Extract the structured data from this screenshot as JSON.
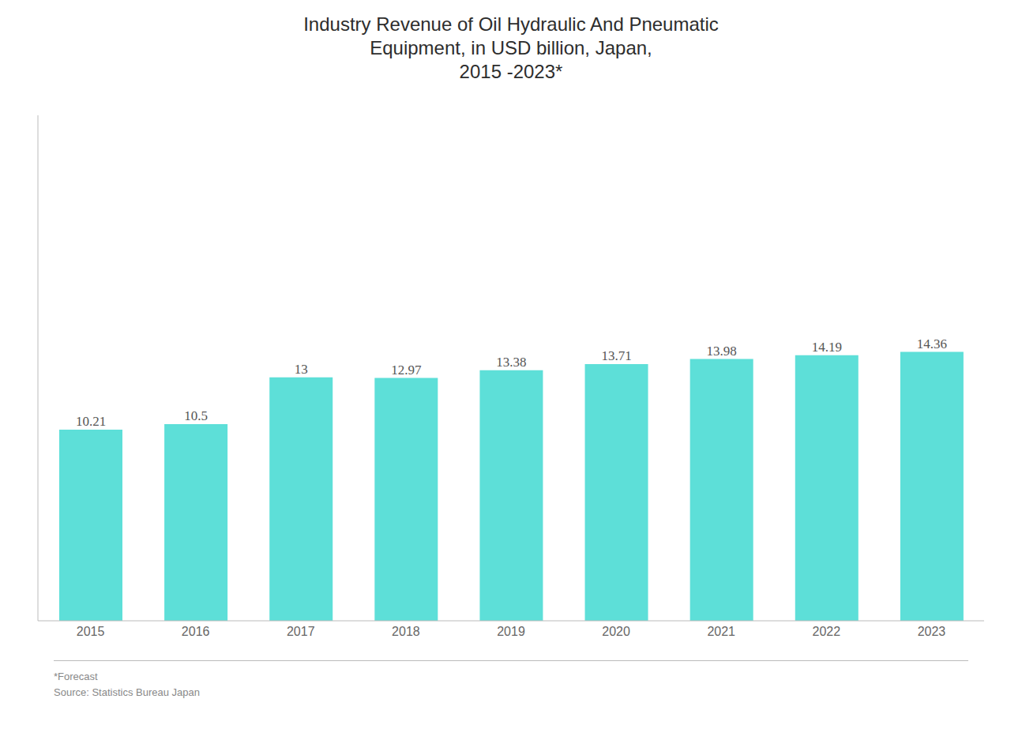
{
  "chart_data": {
    "type": "bar",
    "title": "Industry Revenue of Oil Hydraulic And Pneumatic\nEquipment, in USD billion, Japan,\n2015 -2023*",
    "categories": [
      "2015",
      "2016",
      "2017",
      "2018",
      "2019",
      "2020",
      "2021",
      "2022",
      "2023"
    ],
    "values": [
      10.21,
      10.5,
      13,
      12.97,
      13.38,
      13.71,
      13.98,
      14.19,
      14.36
    ],
    "color": "#5DDFD8",
    "ylim": [
      0,
      27
    ],
    "grid": false,
    "data_labels": true,
    "tick_labels": "x",
    "annotations": [
      "*Forecast",
      "Source: Statistics Bureau Japan"
    ]
  }
}
